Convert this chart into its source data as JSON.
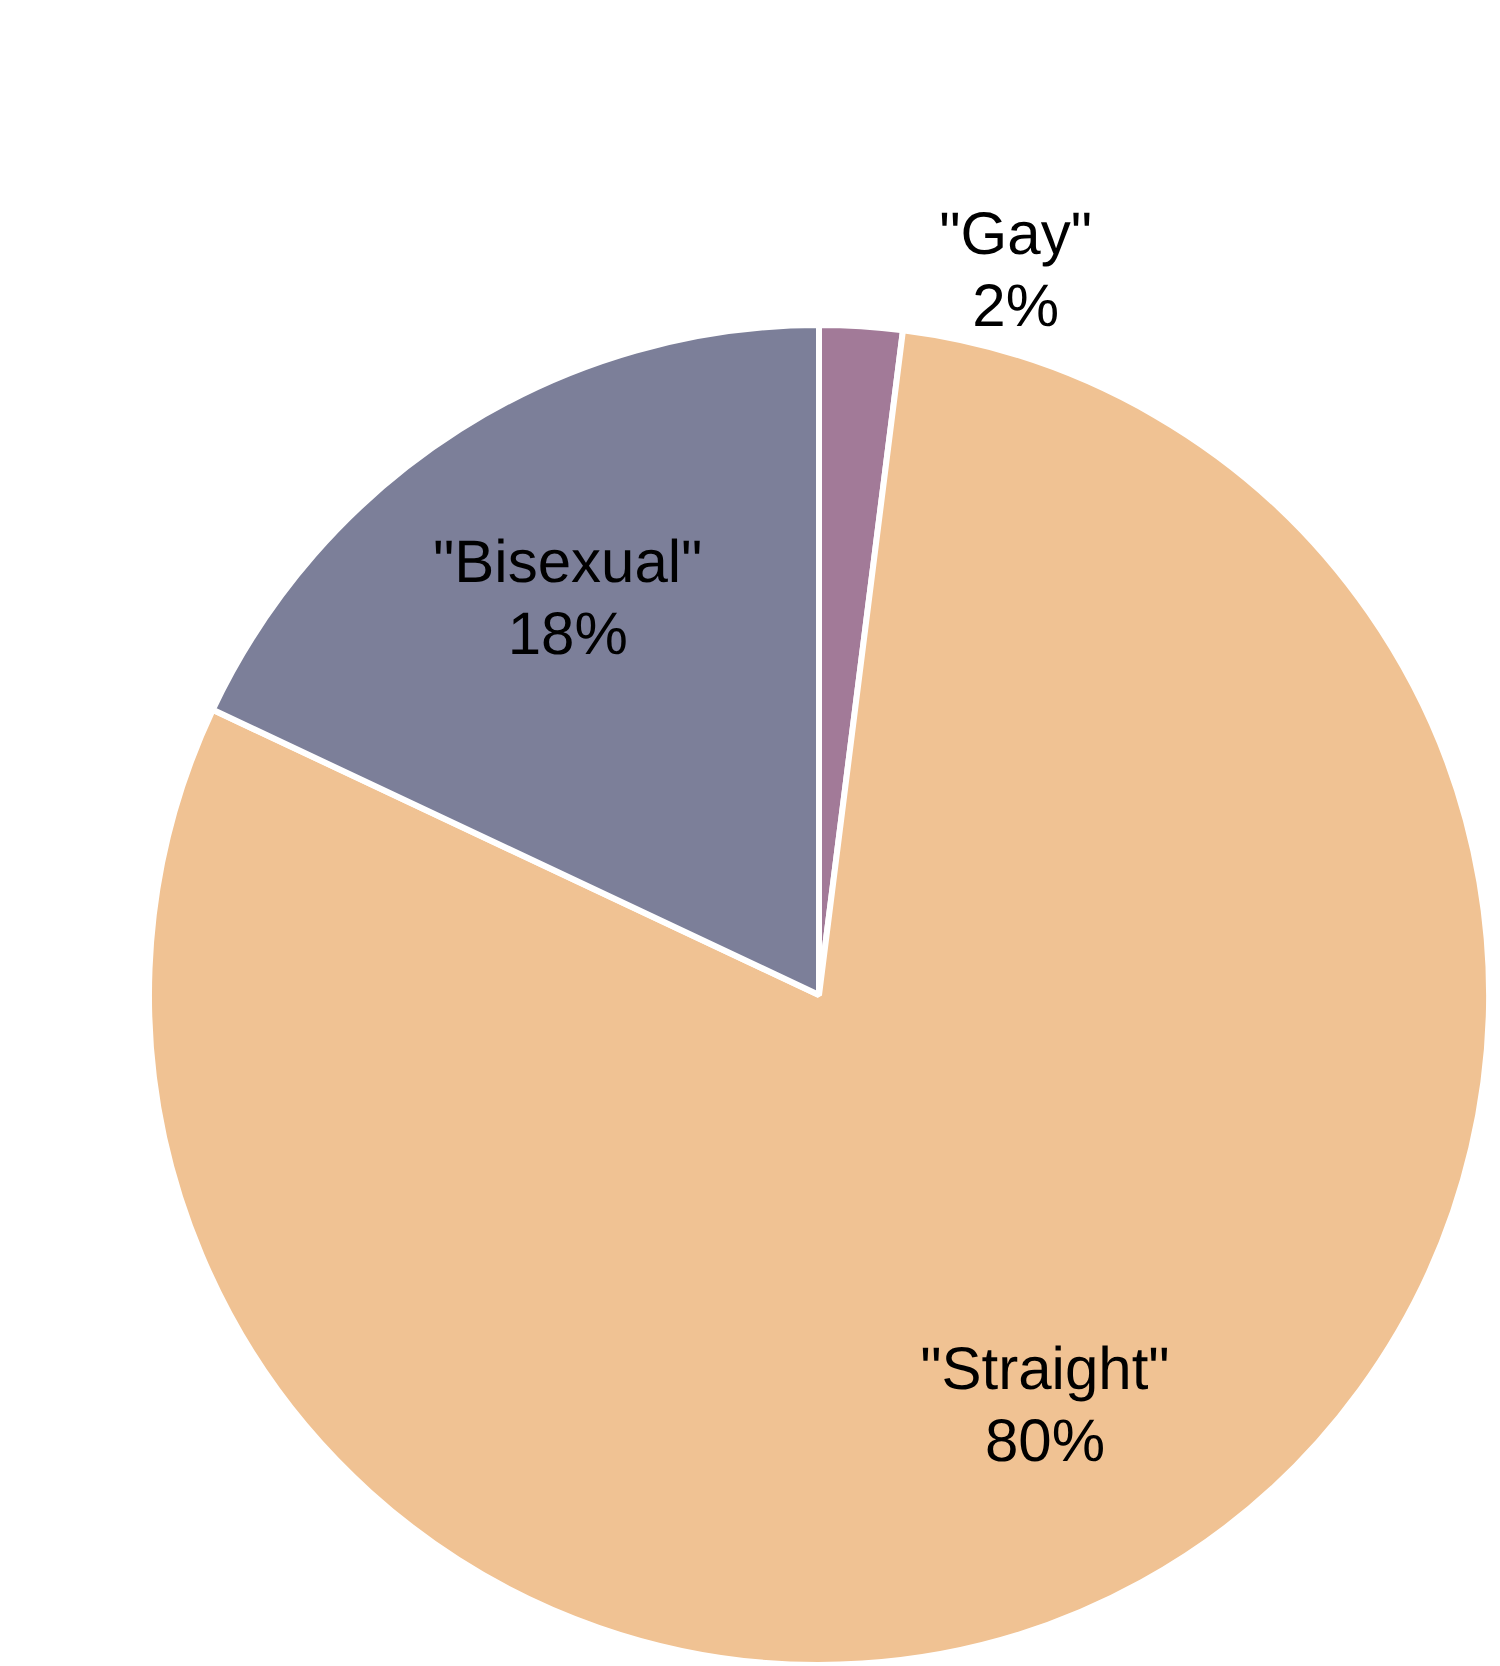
{
  "chart_data": {
    "type": "pie",
    "categories": [
      "\"Gay\"",
      "\"Straight\"",
      "\"Bisexual\""
    ],
    "values": [
      2,
      80,
      18
    ],
    "value_labels": [
      "2%",
      "80%",
      "18%"
    ],
    "data_labels": true,
    "colors": [
      "#a27a98",
      "#f0c293",
      "#7c7f99"
    ],
    "legend": false
  }
}
